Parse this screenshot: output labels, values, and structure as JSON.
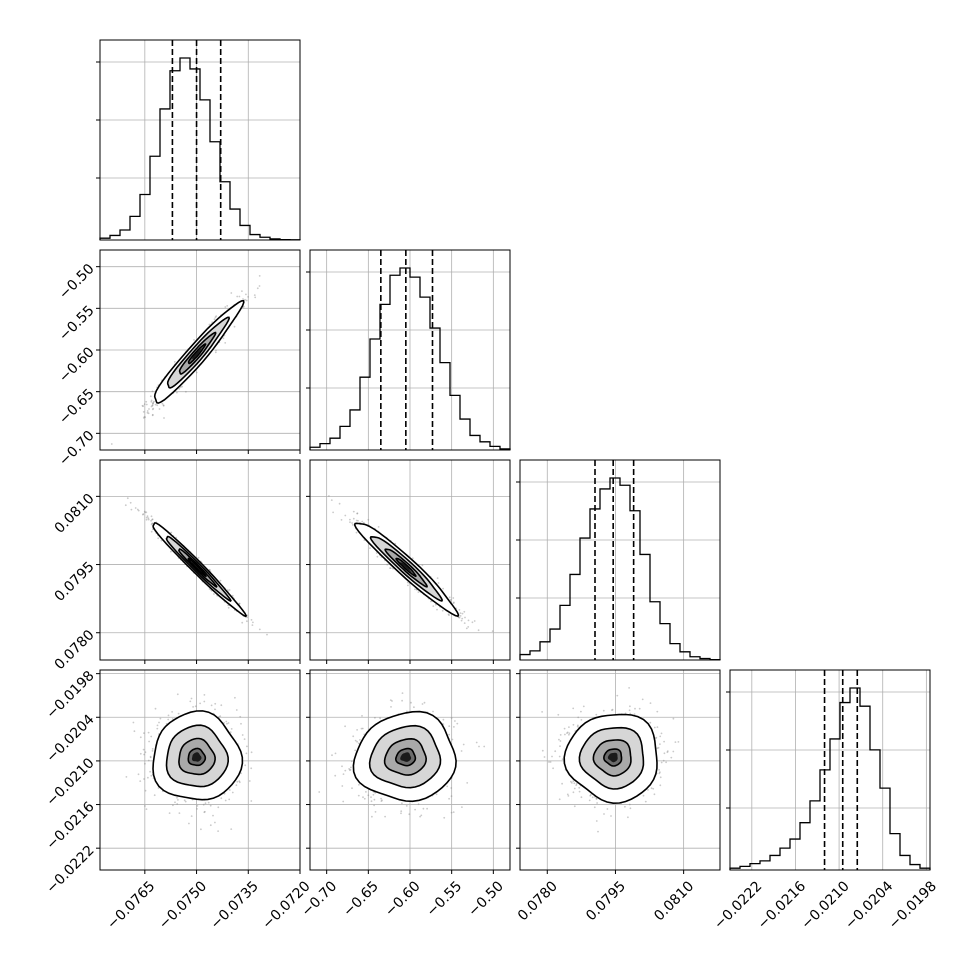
{
  "chart_data": {
    "type": "corner",
    "title": "",
    "parameters": [
      {
        "range": [
          -0.0778,
          -0.072
        ],
        "ticks": [
          -0.0765,
          -0.075,
          -0.0735,
          -0.072
        ],
        "tick_labels": [
          "−0.0765",
          "−0.0750",
          "−0.0735",
          "−0.0720"
        ],
        "median": -0.075,
        "q16": -0.0757,
        "q84": -0.0743
      },
      {
        "range": [
          -0.72,
          -0.48
        ],
        "ticks": [
          -0.7,
          -0.65,
          -0.6,
          -0.55,
          -0.5
        ],
        "tick_labels": [
          "−0.70",
          "−0.65",
          "−0.60",
          "−0.55",
          "−0.50"
        ],
        "median": -0.605,
        "q16": -0.635,
        "q84": -0.573
      },
      {
        "range": [
          0.0774,
          0.0818
        ],
        "ticks": [
          0.078,
          0.0795,
          0.081
        ],
        "tick_labels": [
          "0.0780",
          "0.0795",
          "0.0810"
        ],
        "median": 0.07945,
        "q16": 0.07905,
        "q84": 0.0799
      },
      {
        "range": [
          -0.0225,
          -0.01975
        ],
        "ticks": [
          -0.0222,
          -0.0216,
          -0.021,
          -0.0204,
          -0.0198
        ],
        "tick_labels": [
          "−0.0222",
          "−0.0216",
          "−0.0210",
          "−0.0204",
          "−0.0198"
        ],
        "median": -0.02095,
        "q16": -0.0212,
        "q84": -0.02075
      }
    ],
    "histograms": [
      [
        0.01,
        0.025,
        0.055,
        0.13,
        0.25,
        0.46,
        0.72,
        0.93,
        1.0,
        0.94,
        0.77,
        0.54,
        0.32,
        0.17,
        0.08,
        0.03,
        0.015,
        0.006,
        0.002,
        0.001
      ],
      [
        0.015,
        0.035,
        0.065,
        0.13,
        0.22,
        0.4,
        0.61,
        0.8,
        0.96,
        1.0,
        0.95,
        0.84,
        0.67,
        0.48,
        0.3,
        0.17,
        0.08,
        0.045,
        0.02,
        0.006
      ],
      [
        0.03,
        0.05,
        0.1,
        0.17,
        0.3,
        0.47,
        0.67,
        0.83,
        0.94,
        1.0,
        0.96,
        0.82,
        0.58,
        0.32,
        0.2,
        0.09,
        0.045,
        0.018,
        0.008,
        0.002
      ],
      [
        0.01,
        0.02,
        0.035,
        0.05,
        0.08,
        0.12,
        0.17,
        0.26,
        0.38,
        0.55,
        0.72,
        0.92,
        1.0,
        0.9,
        0.66,
        0.45,
        0.2,
        0.08,
        0.03,
        0.01
      ]
    ],
    "grid": true,
    "legend": "none",
    "xlabel": "",
    "ylabel": ""
  }
}
